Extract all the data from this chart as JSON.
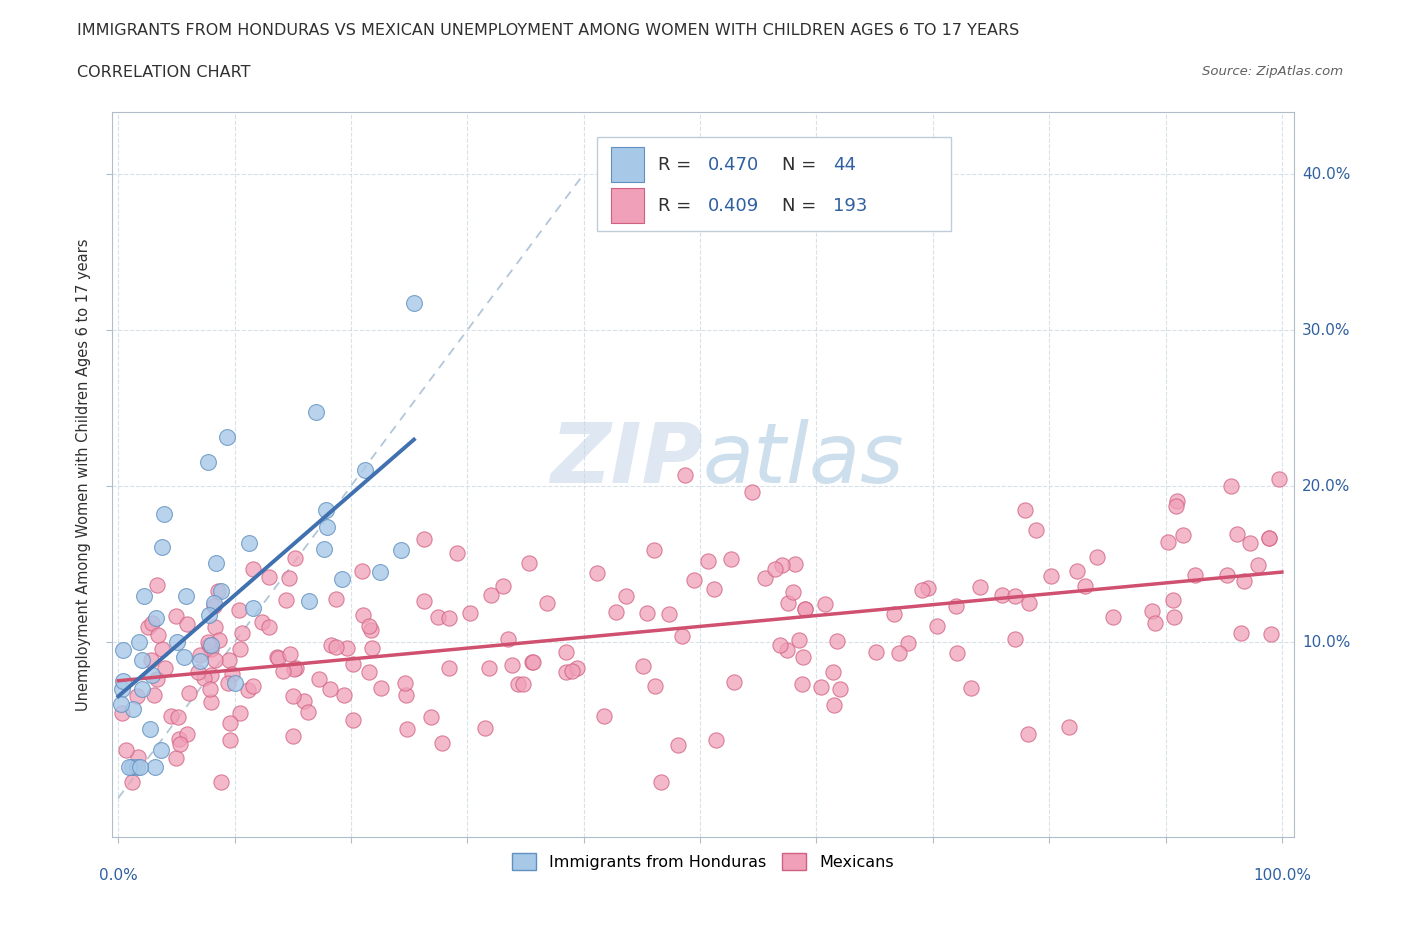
{
  "title": "IMMIGRANTS FROM HONDURAS VS MEXICAN UNEMPLOYMENT AMONG WOMEN WITH CHILDREN AGES 6 TO 17 YEARS",
  "subtitle": "CORRELATION CHART",
  "source": "Source: ZipAtlas.com",
  "ylabel": "Unemployment Among Women with Children Ages 6 to 17 years",
  "y_ticks_labels": [
    "10.0%",
    "20.0%",
    "30.0%",
    "40.0%"
  ],
  "y_tick_vals": [
    0.1,
    0.2,
    0.3,
    0.4
  ],
  "color_blue": "#a8c8e8",
  "color_blue_edge": "#6090c0",
  "color_blue_line": "#4070b0",
  "color_pink": "#f0a0b8",
  "color_pink_edge": "#d06080",
  "color_pink_line": "#d05070",
  "color_diag": "#a0b8d0",
  "watermark_color": "#c8d8ea",
  "legend1_label": "Immigrants from Honduras",
  "legend2_label": "Mexicans",
  "text_color_dark": "#303030",
  "text_color_blue": "#3060a0",
  "source_color": "#606060"
}
